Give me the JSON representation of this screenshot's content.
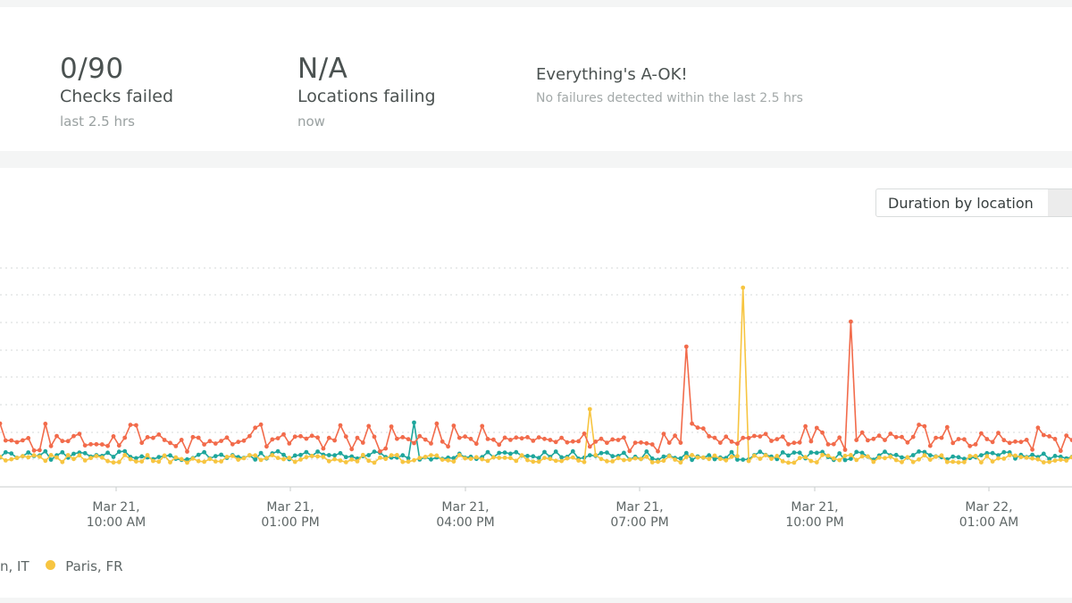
{
  "summary": {
    "checks": {
      "value": "0/90",
      "label": "Checks failed",
      "sub": "last 2.5 hrs"
    },
    "locations": {
      "value": "N/A",
      "label": "Locations failing",
      "sub": "now"
    },
    "status": {
      "title": "Everything's A-OK!",
      "desc": "No failures detected within the last 2.5 hrs"
    }
  },
  "chart_controls": {
    "dropdown_value": "Duration by location"
  },
  "chart_data": {
    "type": "line",
    "x_ticks": [
      [
        "Mar 21,",
        "10:00 AM"
      ],
      [
        "Mar 21,",
        "01:00 PM"
      ],
      [
        "Mar 21,",
        "04:00 PM"
      ],
      [
        "Mar 21,",
        "07:00 PM"
      ],
      [
        "Mar 21,",
        "10:00 PM"
      ],
      [
        "Mar 22,",
        "01:00 AM"
      ]
    ],
    "grid": true,
    "legend_position": "bottom-left",
    "series": [
      {
        "name": "",
        "color": "#f26b4b"
      },
      {
        "name": "",
        "color": "#1ea69c"
      },
      {
        "name": "Paris, FR",
        "color": "#f7c541"
      }
    ],
    "legend": [
      {
        "text": "n, IT",
        "color": "#1ea69c",
        "partial": true
      },
      {
        "text": "Paris, FR",
        "color": "#f7c541"
      }
    ]
  }
}
